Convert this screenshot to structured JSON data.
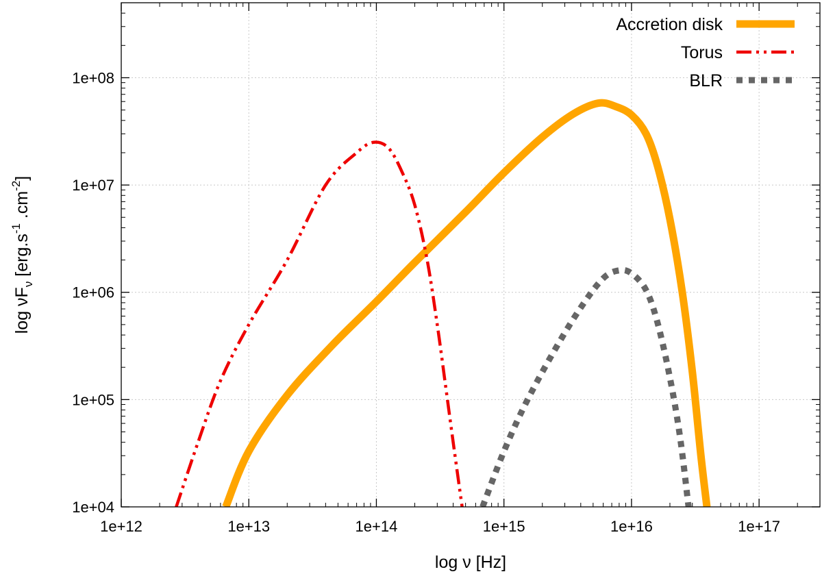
{
  "chart_data": {
    "type": "line",
    "xlabel": "log ν [Hz]",
    "ylabel": {
      "prefix": "log νF",
      "sub": "ν",
      "mid1": " [erg.s",
      "sup1": "-1",
      "mid2": " .cm",
      "sup2": "-2",
      "suffix": "]"
    },
    "x_scale": "log",
    "y_scale": "log",
    "xlim": [
      1000000000000.0,
      3e+17
    ],
    "ylim": [
      10000.0,
      500000000.0
    ],
    "x_ticks": [
      {
        "value": 1000000000000.0,
        "label": "1e+12"
      },
      {
        "value": 10000000000000.0,
        "label": "1e+13"
      },
      {
        "value": 100000000000000.0,
        "label": "1e+14"
      },
      {
        "value": 1000000000000000.0,
        "label": "1e+15"
      },
      {
        "value": 1e+16,
        "label": "1e+16"
      },
      {
        "value": 1e+17,
        "label": "1e+17"
      }
    ],
    "y_ticks": [
      {
        "value": 10000.0,
        "label": "1e+04"
      },
      {
        "value": 100000.0,
        "label": "1e+05"
      },
      {
        "value": 1000000.0,
        "label": "1e+06"
      },
      {
        "value": 10000000.0,
        "label": "1e+07"
      },
      {
        "value": 100000000.0,
        "label": "1e+08"
      }
    ],
    "grid": true,
    "legend_position": "top-right",
    "series": [
      {
        "name": "Accretion disk",
        "color": "#FFA500",
        "style": "solid",
        "points": [
          [
            6600000000000.0,
            10000.0
          ],
          [
            10000000000000.0,
            33000.0
          ],
          [
            20000000000000.0,
            110000.0
          ],
          [
            45000000000000.0,
            320000.0
          ],
          [
            100000000000000.0,
            820000.0
          ],
          [
            200000000000000.0,
            1900000.0
          ],
          [
            500000000000000.0,
            5600000.0
          ],
          [
            1000000000000000.0,
            13000000.0
          ],
          [
            2000000000000000.0,
            28000000.0
          ],
          [
            3500000000000000.0,
            46000000.0
          ],
          [
            5500000000000000.0,
            58000000.0
          ],
          [
            7500000000000000.0,
            54000000.0
          ],
          [
            1e+16,
            45000000.0
          ],
          [
            1.3e+16,
            30000000.0
          ],
          [
            1.6e+16,
            15000000.0
          ],
          [
            2e+16,
            4800000.0
          ],
          [
            2.5e+16,
            1000000.0
          ],
          [
            3e+16,
            180000.0
          ],
          [
            3.5e+16,
            30000.0
          ],
          [
            3.9e+16,
            10000.0
          ]
        ]
      },
      {
        "name": "Torus",
        "color": "#EE0000",
        "style": "dash-dot-dot",
        "points": [
          [
            2700000000000.0,
            10000.0
          ],
          [
            4000000000000.0,
            40000.0
          ],
          [
            6000000000000.0,
            150000.0
          ],
          [
            10000000000000.0,
            500000.0
          ],
          [
            20000000000000.0,
            2000000.0
          ],
          [
            40000000000000.0,
            10000000.0
          ],
          [
            70000000000000.0,
            20000000.0
          ],
          [
            95000000000000.0,
            25000000.0
          ],
          [
            125000000000000.0,
            22000000.0
          ],
          [
            160000000000000.0,
            13000000.0
          ],
          [
            200000000000000.0,
            6500000.0
          ],
          [
            250000000000000.0,
            2000000.0
          ],
          [
            300000000000000.0,
            500000.0
          ],
          [
            350000000000000.0,
            130000.0
          ],
          [
            400000000000000.0,
            40000.0
          ],
          [
            470000000000000.0,
            10000.0
          ]
        ]
      },
      {
        "name": "BLR",
        "color": "#666666",
        "style": "dotted",
        "points": [
          [
            680000000000000.0,
            10000.0
          ],
          [
            1000000000000000.0,
            33000.0
          ],
          [
            1500000000000000.0,
            95000.0
          ],
          [
            2500000000000000.0,
            290000.0
          ],
          [
            4000000000000000.0,
            720000.0
          ],
          [
            6000000000000000.0,
            1350000.0
          ],
          [
            8000000000000000.0,
            1600000.0
          ],
          [
            1e+16,
            1500000.0
          ],
          [
            1.3e+16,
            1050000.0
          ],
          [
            1.6e+16,
            520000.0
          ],
          [
            2e+16,
            160000.0
          ],
          [
            2.4e+16,
            45000.0
          ],
          [
            2.8e+16,
            10000.0
          ]
        ]
      }
    ]
  }
}
